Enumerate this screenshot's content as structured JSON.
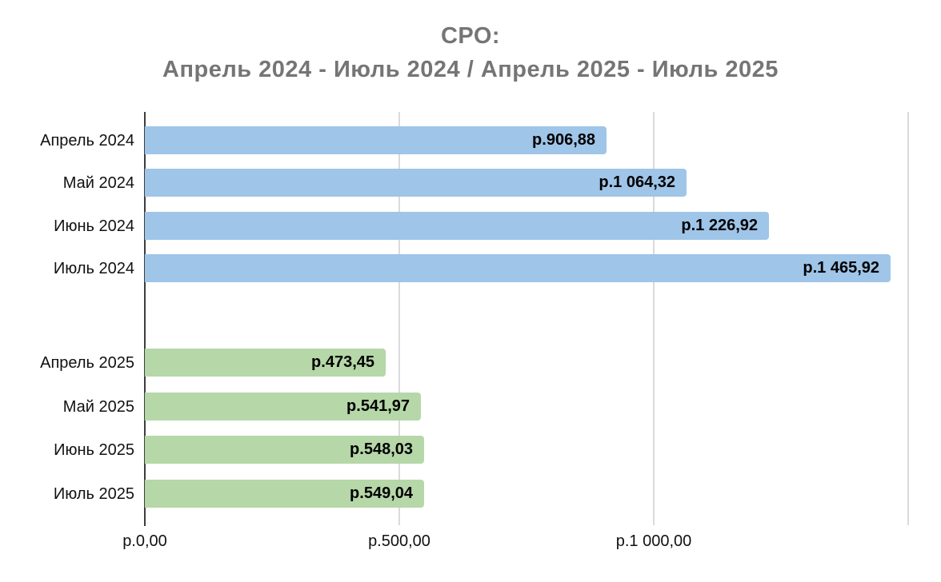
{
  "title": {
    "line1": "СРО:",
    "line2": "Апрель 2024 - Июль 2024 / Апрель 2025 - Июль 2025"
  },
  "chart_data": {
    "type": "bar",
    "orientation": "horizontal",
    "title": "СРО: Апрель 2024 - Июль 2024 / Апрель 2025 - Июль 2025",
    "xlabel": "",
    "ylabel": "",
    "xlim": [
      0,
      1500
    ],
    "grid": true,
    "legend": false,
    "series": [
      {
        "name": "Апрель 2024 - Июль 2024",
        "color": "#9fc5e8",
        "categories": [
          "Апрель 2024",
          "Май 2024",
          "Июнь 2024",
          "Июль 2024"
        ],
        "values": [
          906.88,
          1064.32,
          1226.92,
          1465.92
        ],
        "value_labels": [
          "р.906,88",
          "р.1 064,32",
          "р.1 226,92",
          "р.1 465,92"
        ]
      },
      {
        "name": "Апрель 2025 - Июль 2025",
        "color": "#b6d7a8",
        "categories": [
          "Апрель 2025",
          "Май 2025",
          "Июнь 2025",
          "Июль 2025"
        ],
        "values": [
          473.45,
          541.97,
          548.03,
          549.04
        ],
        "value_labels": [
          "р.473,45",
          "р.541,97",
          "р.548,03",
          "р.549,04"
        ]
      }
    ],
    "x_axis_ticks": [
      {
        "value": 0,
        "label": "р.0,00"
      },
      {
        "value": 500,
        "label": "р.500,00"
      },
      {
        "value": 1000,
        "label": "р.1 000,00"
      },
      {
        "value": 1500,
        "label": ""
      }
    ],
    "colors": {
      "title_text": "#757575",
      "bar_2024": "#9fc5e8",
      "bar_2025": "#b6d7a8",
      "gridline": "#dadada",
      "axis_tick": "#3d3d3d",
      "label_text": "#111111",
      "value_text": "#000000",
      "background": "#ffffff"
    }
  }
}
